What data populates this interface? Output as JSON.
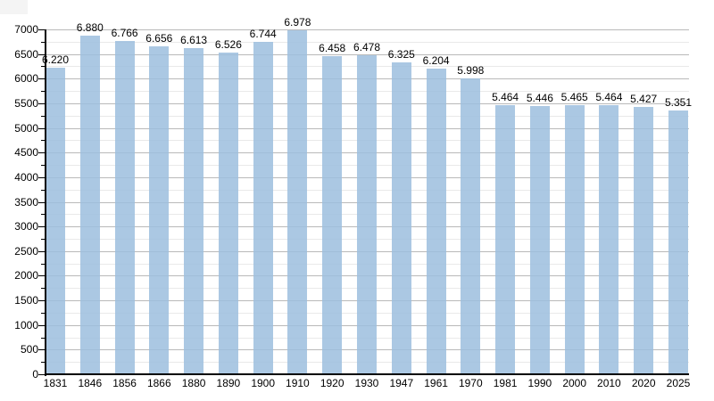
{
  "chart_data": {
    "type": "bar",
    "title": "",
    "xlabel": "",
    "ylabel": "",
    "categories": [
      "1831",
      "1846",
      "1856",
      "1866",
      "1880",
      "1890",
      "1900",
      "1910",
      "1920",
      "1930",
      "1947",
      "1961",
      "1970",
      "1981",
      "1990",
      "2000",
      "2010",
      "2020",
      "2025"
    ],
    "values": [
      6220,
      6880,
      6766,
      6656,
      6613,
      6526,
      6744,
      6978,
      6458,
      6478,
      6325,
      6204,
      5998,
      5464,
      5446,
      5465,
      5464,
      5427,
      5351
    ],
    "bar_labels": [
      "6.220",
      "6.880",
      "6.766",
      "6.656",
      "6.613",
      "6.526",
      "6.744",
      "6.978",
      "6.458",
      "6.478",
      "6.325",
      "6.204",
      "5.998",
      "5.464",
      "5.446",
      "5.465",
      "5.464",
      "5.427",
      "5.351"
    ],
    "ylim": [
      0,
      7000
    ],
    "ytick_step": 500,
    "y_minor_step": 250,
    "y_tick_labels": [
      "0",
      "500",
      "1000",
      "1500",
      "2000",
      "2500",
      "3000",
      "3500",
      "4000",
      "4500",
      "5000",
      "5500",
      "6000",
      "6500",
      "7000"
    ],
    "grid": true,
    "legend_position": "none",
    "colors": {
      "bar": "rgba(156,190,222,0.85)",
      "bar_solid": "#abc8e3",
      "grid_major": "#b9b9b9",
      "grid_minor": "#e9e9e9",
      "axis": "#000000",
      "text": "#000000",
      "background": "#ffffff"
    }
  }
}
